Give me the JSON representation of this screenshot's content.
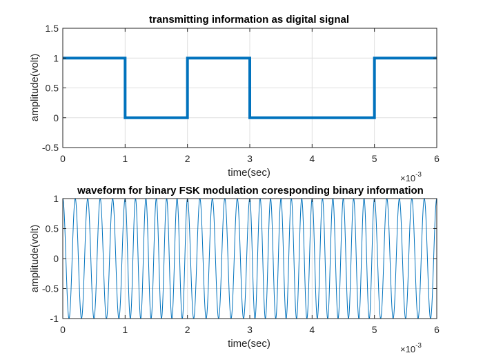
{
  "colors": {
    "series": "#0072BD",
    "axis": "#262626",
    "grid": "#dfdfdf"
  },
  "chart_data": [
    {
      "type": "line",
      "title": "transmitting information as digital signal",
      "xlabel": "time(sec)",
      "ylabel": "amplitude(volt)",
      "x_exponent": {
        "base": "×10",
        "power": "-3"
      },
      "xlim": [
        0,
        6
      ],
      "ylim": [
        -0.5,
        1.5
      ],
      "xticks": [
        0,
        1,
        2,
        3,
        4,
        5,
        6
      ],
      "xtick_labels": [
        "0",
        "1",
        "2",
        "3",
        "4",
        "5",
        "6"
      ],
      "yticks": [
        -0.5,
        0,
        0.5,
        1,
        1.5
      ],
      "ytick_labels": [
        "-0.5",
        "0",
        "0.5",
        "1",
        "1.5"
      ],
      "grid": true,
      "bits": [
        1,
        0,
        1,
        0,
        0,
        1
      ],
      "series": [
        {
          "x": [
            0,
            1,
            1,
            2,
            2,
            3,
            3,
            5,
            5,
            6
          ],
          "y": [
            1,
            1,
            0,
            0,
            1,
            1,
            0,
            0,
            1,
            1
          ]
        }
      ]
    },
    {
      "type": "line",
      "title": "waveform for binary FSK modulation coresponding binary information",
      "xlabel": "time(sec)",
      "ylabel": "amplitude(volt)",
      "x_exponent": {
        "base": "×10",
        "power": "-3"
      },
      "xlim": [
        0,
        6
      ],
      "ylim": [
        -1,
        1
      ],
      "xticks": [
        0,
        1,
        2,
        3,
        4,
        5,
        6
      ],
      "xtick_labels": [
        "0",
        "1",
        "2",
        "3",
        "4",
        "5",
        "6"
      ],
      "yticks": [
        -1,
        -0.5,
        0,
        0.5,
        1
      ],
      "ytick_labels": [
        "-1",
        "-0.5",
        "0",
        "0.5",
        "1"
      ],
      "grid": true,
      "signal": "cos",
      "frequency_for_bit_1": 5000,
      "frequency_for_bit_0": 6000,
      "bit_duration": 0.001
    }
  ]
}
